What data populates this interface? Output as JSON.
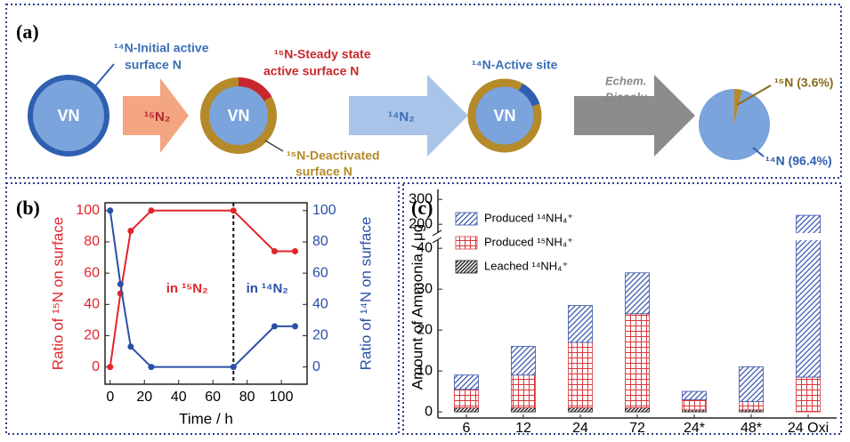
{
  "diagram": {
    "label": "(a)",
    "circles": [
      "VN",
      "VN",
      "VN"
    ],
    "arrows": [
      {
        "lines": [
          "¹⁵N₂"
        ]
      },
      {
        "lines": [
          "¹⁴N₂"
        ]
      },
      {
        "lines": [
          "Echem.",
          "Dissolu."
        ]
      }
    ],
    "annotations": [
      {
        "lines": [
          "¹⁴N-Initial active",
          "surface N"
        ],
        "color": "#3a6fb5"
      },
      {
        "lines": [
          "¹⁵N-Steady state",
          "active surface N"
        ],
        "color": "#c8282d"
      },
      {
        "lines": [
          "¹⁵N-Deactivated",
          "surface N"
        ],
        "color": "#b48a2a"
      },
      {
        "lines": [
          "¹⁴N-Active site"
        ],
        "color": "#3a6fb5"
      }
    ],
    "pie": {
      "values": [
        3.6,
        96.4
      ],
      "labels": [
        "¹⁵N (3.6%)",
        "¹⁴N (96.4%)"
      ],
      "colors": [
        "#b48a2a",
        "#7ba3dc"
      ]
    }
  },
  "chart_data": [
    {
      "type": "line",
      "label": "(b)",
      "x": [
        0,
        6,
        12,
        24,
        72,
        96,
        108
      ],
      "series": [
        {
          "color": "#e0262b",
          "values": [
            0,
            47,
            87,
            100,
            100,
            74,
            74
          ]
        },
        {
          "color": "#2b4fa8",
          "axis": "y2",
          "values": [
            100,
            53,
            13,
            0,
            0,
            26,
            26
          ]
        }
      ],
      "xlim": [
        -3,
        115
      ],
      "xticks": [
        0,
        20,
        40,
        60,
        80,
        100
      ],
      "ylim": [
        -11,
        105
      ],
      "yticks": [
        0,
        20,
        40,
        60,
        80,
        100
      ],
      "y2lim": [
        -11,
        105
      ],
      "y2ticks": [
        0,
        20,
        40,
        60,
        80,
        100
      ],
      "xlabel": "Time / h",
      "ylabel": "Ratio of ¹⁵N on surface",
      "y2label": "Ratio of ¹⁴N on surface",
      "vline": 72,
      "annotations": [
        {
          "text": "in ¹⁵N₂",
          "color": "#e0262b"
        },
        {
          "text": "in ¹⁴N₂",
          "color": "#2b4fa8"
        }
      ]
    },
    {
      "type": "stacked-bar",
      "label": "(c)",
      "categories": [
        "6",
        "12",
        "24",
        "72",
        "24*",
        "48*",
        "24 Oxi"
      ],
      "series": [
        {
          "name": "Leached ¹⁴NH₄⁺",
          "color": "#222222",
          "values": [
            1,
            1,
            1,
            1,
            0.5,
            0.5,
            0
          ]
        },
        {
          "name": "Produced ¹⁵NH₄⁺",
          "color": "#d9383a",
          "values": [
            4.5,
            8,
            16,
            23,
            2.5,
            2,
            8.5
          ]
        },
        {
          "name": "Produced ¹⁴NH₄⁺",
          "color": "#3552a8",
          "values": [
            3.5,
            7,
            9,
            10,
            2,
            8.5,
            227.5
          ]
        }
      ],
      "y_segments": [
        {
          "ylim": [
            -1.5,
            42
          ],
          "yticks": [
            0,
            10,
            20,
            30,
            40
          ]
        },
        {
          "ylim": [
            165,
            340
          ],
          "yticks": [
            200,
            300
          ]
        }
      ],
      "ylabel": "Amount of Ammonia / μg"
    }
  ]
}
